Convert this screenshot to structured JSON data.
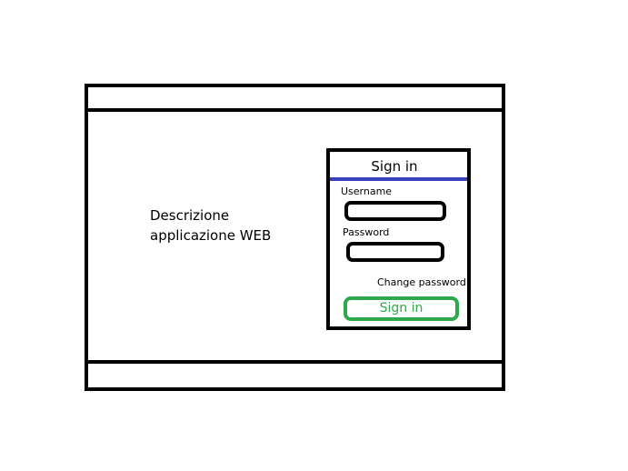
{
  "main": {
    "description_line1": "Descrizione",
    "description_line2": "applicazione WEB"
  },
  "login": {
    "title": "Sign in",
    "username_label": "Username",
    "password_label": "Password",
    "change_password_link": "Change password",
    "submit_label": "Sign in"
  },
  "colors": {
    "title_divider": "#3a3fbd",
    "submit_button": "#2ea84a"
  }
}
